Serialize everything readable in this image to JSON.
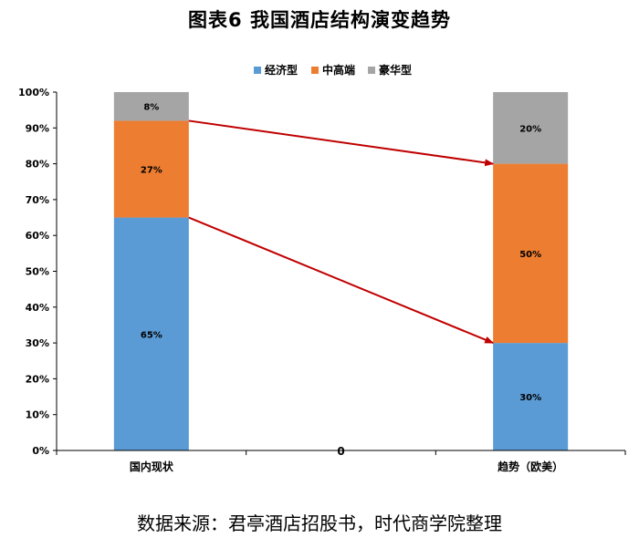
{
  "title": "图表6   我国酒店结构演变趋势",
  "source_note": "数据来源：君亭酒店招股书，时代商学院整理",
  "colors": {
    "economy": "#5b9bd5",
    "midhigh": "#ed7d31",
    "luxury": "#a5a5a5",
    "arrow": "#c00000",
    "axis": "#000000"
  },
  "chart_data": {
    "type": "bar",
    "stacked": true,
    "categories": [
      "国内现状",
      "0",
      "趋势（欧美）"
    ],
    "series": [
      {
        "name": "经济型",
        "values": [
          65,
          null,
          30
        ],
        "labels": [
          "65%",
          null,
          "30%"
        ]
      },
      {
        "name": "中高端",
        "values": [
          27,
          null,
          50
        ],
        "labels": [
          "27%",
          null,
          "50%"
        ]
      },
      {
        "name": "豪华型",
        "values": [
          8,
          null,
          20
        ],
        "labels": [
          "8%",
          null,
          "20%"
        ]
      }
    ],
    "ylim": [
      0,
      100
    ],
    "yticks": [
      "0%",
      "10%",
      "20%",
      "30%",
      "40%",
      "50%",
      "60%",
      "70%",
      "80%",
      "90%",
      "100%"
    ],
    "legend_position": "top",
    "grid": false,
    "arrows": [
      {
        "from": {
          "category": "国内现状",
          "y": 92
        },
        "to": {
          "category": "趋势（欧美）",
          "y": 80
        }
      },
      {
        "from": {
          "category": "国内现状",
          "y": 65
        },
        "to": {
          "category": "趋势（欧美）",
          "y": 30
        }
      }
    ]
  }
}
